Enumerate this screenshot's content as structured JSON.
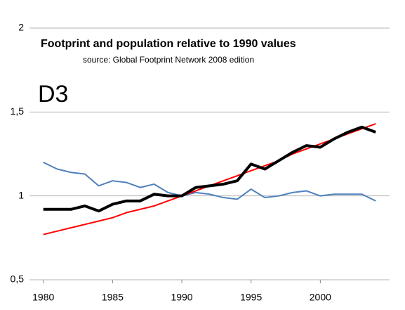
{
  "chart_data": {
    "type": "line",
    "title": "Footprint and population relative to 1990 values",
    "subtitle": "source: Global Footprint Network 2008 edition",
    "annotation": "D3",
    "x": [
      1980,
      1981,
      1982,
      1983,
      1984,
      1985,
      1986,
      1987,
      1988,
      1989,
      1990,
      1991,
      1992,
      1993,
      1994,
      1995,
      1996,
      1997,
      1998,
      1999,
      2000,
      2001,
      2002,
      2003,
      2004
    ],
    "series": [
      {
        "color": "#4f81bd",
        "values": [
          1.2,
          1.16,
          1.14,
          1.13,
          1.06,
          1.09,
          1.08,
          1.05,
          1.07,
          1.02,
          1.0,
          1.02,
          1.01,
          0.99,
          0.98,
          1.04,
          0.99,
          1.0,
          1.02,
          1.03,
          1.0,
          1.01,
          1.01,
          1.01,
          0.97
        ]
      },
      {
        "color": "#ff0000",
        "values": [
          0.77,
          0.79,
          0.81,
          0.83,
          0.85,
          0.87,
          0.9,
          0.92,
          0.94,
          0.97,
          1.0,
          1.03,
          1.06,
          1.09,
          1.12,
          1.15,
          1.18,
          1.21,
          1.25,
          1.28,
          1.31,
          1.34,
          1.37,
          1.4,
          1.43
        ]
      },
      {
        "color": "#000000",
        "values": [
          0.92,
          0.92,
          0.92,
          0.94,
          0.91,
          0.95,
          0.97,
          0.97,
          1.01,
          1.0,
          1.0,
          1.05,
          1.06,
          1.07,
          1.09,
          1.19,
          1.16,
          1.21,
          1.26,
          1.3,
          1.29,
          1.34,
          1.38,
          1.41,
          1.38
        ]
      }
    ],
    "xlim": [
      1979,
      2005
    ],
    "xticks": [
      1980,
      1985,
      1990,
      1995,
      2000
    ],
    "ylim": [
      0.5,
      2
    ],
    "yticks": [
      {
        "value": 0.5,
        "label": "0,5"
      },
      1,
      {
        "value": 1.5,
        "label": "1,5"
      },
      2
    ],
    "grid": true
  }
}
